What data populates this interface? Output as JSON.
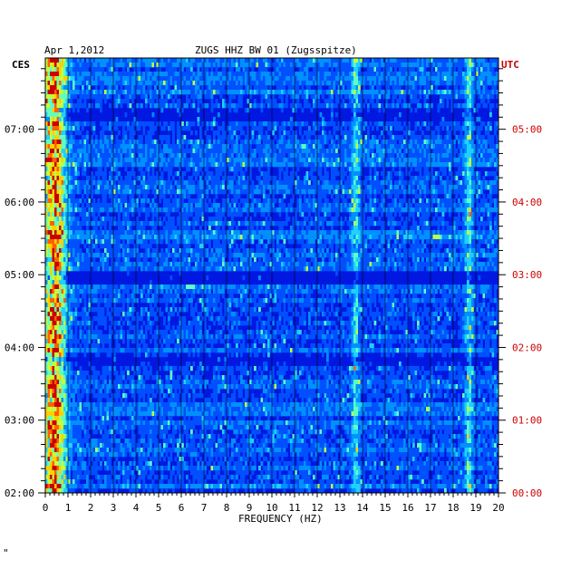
{
  "chart_data": {
    "type": "heatmap",
    "title_left": "Apr 1,2012",
    "title_center": "ZUGS HHZ BW 01 (Zugsspitze)",
    "left_tz": "CES",
    "right_tz": "UTC",
    "xlabel": "FREQUENCY (HZ)",
    "xlim": [
      0,
      20
    ],
    "x_ticks": [
      "0",
      "1",
      "2",
      "3",
      "4",
      "5",
      "6",
      "7",
      "8",
      "9",
      "10",
      "11",
      "12",
      "13",
      "14",
      "15",
      "16",
      "17",
      "18",
      "19",
      "20"
    ],
    "left_time_ticks": [
      "07:00",
      "06:00",
      "05:00",
      "04:00",
      "03:00",
      "02:00"
    ],
    "right_time_ticks": [
      "05:00",
      "04:00",
      "03:00",
      "02:00",
      "01:00",
      "00:00"
    ],
    "ylim_hours": [
      2.0,
      7.98
    ],
    "colorscale": [
      "#000080",
      "#0000c8",
      "#0010ff",
      "#0050ff",
      "#0090ff",
      "#20d0ff",
      "#60ffc0",
      "#c0ff40",
      "#ffd000",
      "#ff6000",
      "#c80000"
    ],
    "features": [
      {
        "label": "microseism band",
        "freq_hz": 0.4,
        "intensity": "high"
      },
      {
        "label": "persistent line",
        "freq_hz": 13.7,
        "intensity": "medium"
      },
      {
        "label": "persistent line",
        "freq_hz": 18.7,
        "intensity": "medium"
      }
    ],
    "quiet_rows_hours": [
      7.2,
      4.95,
      3.85
    ]
  },
  "colors": {
    "axis": "#000000",
    "utc_labels": "#cc0000",
    "background": "#ffffff"
  },
  "footer_mark": "\""
}
